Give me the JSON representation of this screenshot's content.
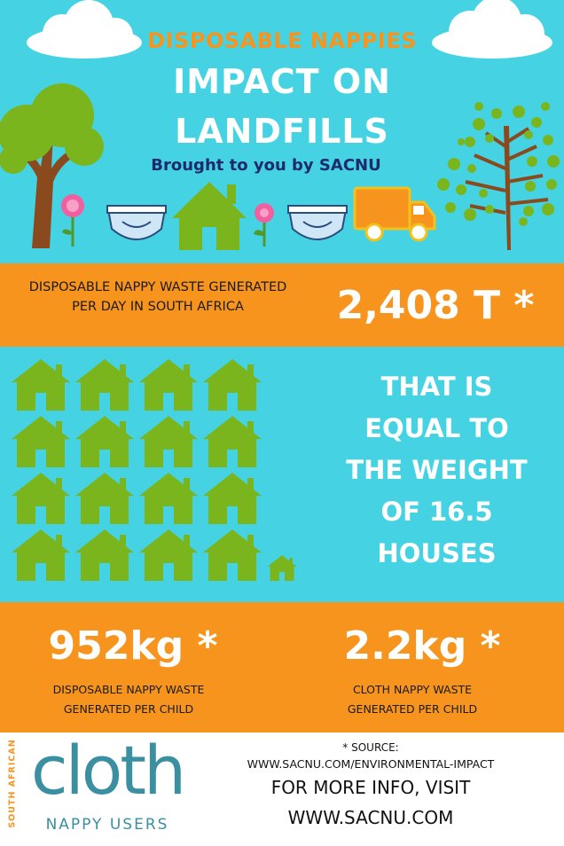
{
  "header": {
    "kicker": "DISPOSABLE NAPPIES",
    "title_line1": "IMPACT ON",
    "title_line2": "LANDFILLS",
    "byline": "Brought to you by SACNU"
  },
  "stat_daily": {
    "label": "DISPOSABLE NAPPY WASTE GENERATED PER DAY IN SOUTH AFRICA",
    "value": "2,408 T *"
  },
  "equivalence": {
    "line1": "THAT IS",
    "line2": "EQUAL TO",
    "line3": "THE WEIGHT",
    "line4": "OF 16.5",
    "line5": "HOUSES",
    "houses_count": 16.5
  },
  "per_child": {
    "disposable_value": "952kg *",
    "disposable_label_line1": "DISPOSABLE NAPPY WASTE",
    "disposable_label_line2": "GENERATED PER CHILD",
    "cloth_value": "2.2kg *",
    "cloth_label_line1": "CLOTH NAPPY WASTE",
    "cloth_label_line2": "GENERATED PER CHILD"
  },
  "footer": {
    "logo_side": "SOUTH AFRICAN",
    "logo_word": "cloth",
    "logo_sub": "NAPPY USERS",
    "source_label": "* SOURCE:",
    "source_url": "WWW.SACNU.COM/ENVIRONMENTAL-IMPACT",
    "more_info": "FOR MORE INFO, VISIT",
    "site": "WWW.SACNU.COM"
  },
  "colors": {
    "sky": "#45d3e3",
    "orange": "#f7941d",
    "green": "#7ab51d",
    "navy": "#1e2a6e",
    "teal_logo": "#3a8fa0"
  }
}
